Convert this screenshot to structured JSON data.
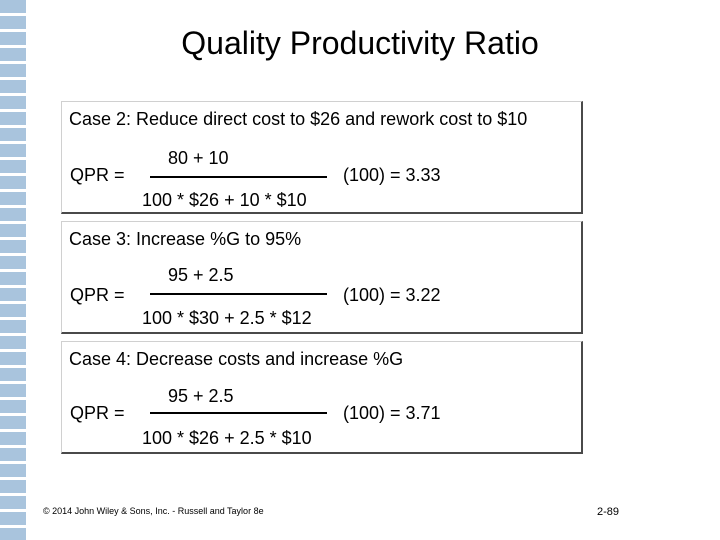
{
  "slide": {
    "title": "Quality Productivity Ratio",
    "accent_color": "#a9c4dd"
  },
  "cases": [
    {
      "heading": "Case 2: Reduce direct cost to $26 and rework cost to $10",
      "qpr_label": "QPR =",
      "numerator": "80 + 10",
      "denominator": "100 * $26 + 10 * $10",
      "result": "(100) = 3.33"
    },
    {
      "heading": "Case 3: Increase %G to 95%",
      "qpr_label": "QPR =",
      "numerator": "95 + 2.5",
      "denominator": "100 * $30 + 2.5 * $12",
      "result": "(100) = 3.22"
    },
    {
      "heading": "Case 4: Decrease costs and increase %G",
      "qpr_label": "QPR =",
      "numerator": "95 + 2.5",
      "denominator": "100 * $26 + 2.5 * $10",
      "result": "(100) = 3.71"
    }
  ],
  "footer": {
    "copyright": "© 2014 John Wiley & Sons, Inc. - Russell and Taylor 8e",
    "page_number": "2-89"
  }
}
